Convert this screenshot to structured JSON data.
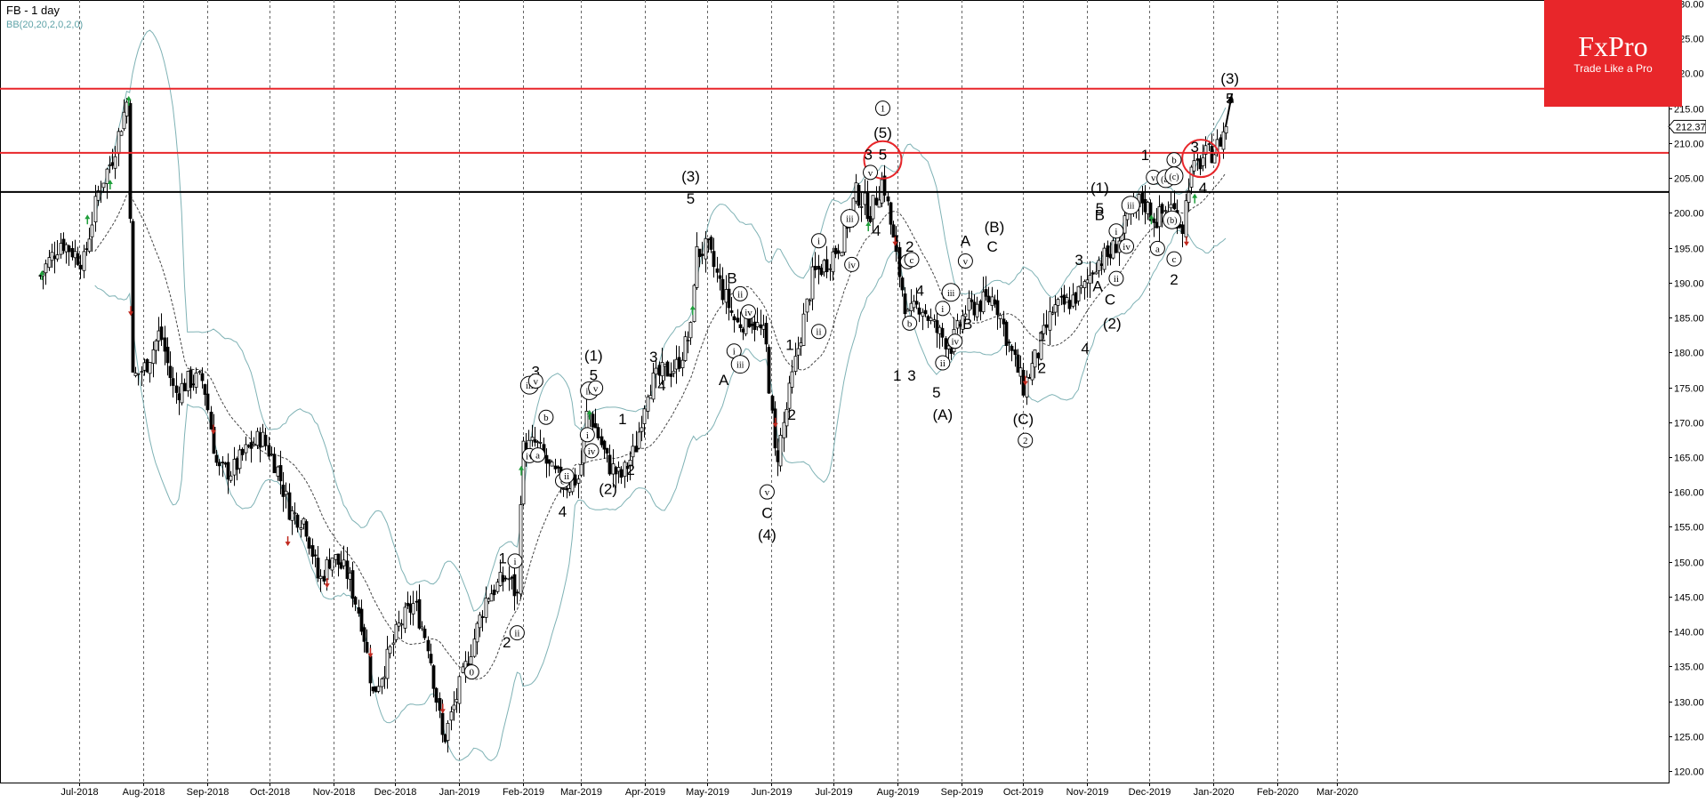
{
  "header": {
    "symbol_title": "FB  - 1 day",
    "indicator_label": "BB(20,20,2,0,2,0)"
  },
  "logo": {
    "name": "FxPro",
    "slogan": "Trade Like a Pro"
  },
  "colors": {
    "background": "#ffffff",
    "candle": "#000000",
    "bollinger_bands": "#7fb2b5",
    "resistance_line": "#e8262a",
    "support_line": "#000000",
    "up_arrow": "#1e9e3a",
    "down_arrow": "#c0281e",
    "logo": "#e8262a"
  },
  "chart_data": {
    "type": "candlestick",
    "symbol": "FB",
    "timeframe": "1 day",
    "indicator": "Bollinger Bands",
    "ylim": [
      118,
      231
    ],
    "y_ticks": [
      120,
      125,
      130,
      135,
      140,
      145,
      150,
      155,
      160,
      165,
      170,
      175,
      180,
      185,
      190,
      195,
      200,
      205,
      210,
      215,
      220,
      225,
      230
    ],
    "y_tick_labels": [
      "120.00",
      "125.00",
      "130.00",
      "135.00",
      "140.00",
      "145.00",
      "150.00",
      "155.00",
      "160.00",
      "165.00",
      "170.00",
      "175.00",
      "180.00",
      "185.00",
      "190.00",
      "195.00",
      "200.00",
      "205.00",
      "210.00",
      "215.00",
      "220.00",
      "225.00",
      "230.00"
    ],
    "x_axis_labels": [
      "Jul-2018",
      "Aug-2018",
      "Sep-2018",
      "Oct-2018",
      "Nov-2018",
      "Dec-2018",
      "Jan-2019",
      "Feb-2019",
      "Mar-2019",
      "Apr-2019",
      "May-2019",
      "Jun-2019",
      "Jul-2019",
      "Aug-2019",
      "Sep-2019",
      "Oct-2019",
      "Nov-2019",
      "Dec-2019",
      "Jan-2020",
      "Feb-2020",
      "Mar-2020"
    ],
    "last_price": 212.37,
    "last_price_label": "212.37",
    "horizontal_lines": [
      {
        "kind": "resistance",
        "value": 217.8,
        "color": "#e8262a"
      },
      {
        "kind": "resistance",
        "value": 208.6,
        "color": "#e8262a"
      },
      {
        "kind": "support",
        "value": 203.0,
        "color": "#000000"
      }
    ],
    "highlight_circles": [
      {
        "date": "2019-07-25",
        "price": 207.6
      },
      {
        "date": "2019-12-26",
        "price": 207.8
      }
    ],
    "price_anchors": [
      [
        "2018-06-12",
        191
      ],
      [
        "2018-06-22",
        196
      ],
      [
        "2018-07-03",
        193
      ],
      [
        "2018-07-10",
        203
      ],
      [
        "2018-07-17",
        208
      ],
      [
        "2018-07-25",
        217
      ],
      [
        "2018-07-26",
        176
      ],
      [
        "2018-08-02",
        178
      ],
      [
        "2018-08-09",
        183
      ],
      [
        "2018-08-16",
        174
      ],
      [
        "2018-08-23",
        176
      ],
      [
        "2018-08-30",
        176
      ],
      [
        "2018-09-06",
        163
      ],
      [
        "2018-09-13",
        163
      ],
      [
        "2018-09-20",
        166
      ],
      [
        "2018-09-27",
        168
      ],
      [
        "2018-10-04",
        164
      ],
      [
        "2018-10-11",
        157
      ],
      [
        "2018-10-18",
        156
      ],
      [
        "2018-10-25",
        147
      ],
      [
        "2018-10-31",
        151
      ],
      [
        "2018-11-08",
        148
      ],
      [
        "2018-11-15",
        141
      ],
      [
        "2018-11-20",
        131
      ],
      [
        "2018-11-27",
        136
      ],
      [
        "2018-12-03",
        141
      ],
      [
        "2018-12-10",
        144
      ],
      [
        "2018-12-17",
        138
      ],
      [
        "2018-12-24",
        124
      ],
      [
        "2018-12-31",
        131
      ],
      [
        "2019-01-07",
        138
      ],
      [
        "2019-01-14",
        145
      ],
      [
        "2019-01-24",
        148
      ],
      [
        "2019-01-29",
        145
      ],
      [
        "2019-01-31",
        166
      ],
      [
        "2019-02-07",
        167
      ],
      [
        "2019-02-14",
        163
      ],
      [
        "2019-02-21",
        161
      ],
      [
        "2019-02-28",
        162
      ],
      [
        "2019-03-04",
        172
      ],
      [
        "2019-03-08",
        169
      ],
      [
        "2019-03-14",
        164
      ],
      [
        "2019-03-20",
        162
      ],
      [
        "2019-03-27",
        166
      ],
      [
        "2019-04-02",
        175
      ],
      [
        "2019-04-09",
        177
      ],
      [
        "2019-04-16",
        178
      ],
      [
        "2019-04-23",
        183
      ],
      [
        "2019-04-25",
        194
      ],
      [
        "2019-05-01",
        195
      ],
      [
        "2019-05-08",
        189
      ],
      [
        "2019-05-15",
        184
      ],
      [
        "2019-05-22",
        185
      ],
      [
        "2019-05-29",
        182
      ],
      [
        "2019-06-03",
        164
      ],
      [
        "2019-06-07",
        170
      ],
      [
        "2019-06-14",
        181
      ],
      [
        "2019-06-21",
        191
      ],
      [
        "2019-06-28",
        193
      ],
      [
        "2019-07-05",
        196
      ],
      [
        "2019-07-12",
        203
      ],
      [
        "2019-07-19",
        200
      ],
      [
        "2019-07-25",
        205
      ],
      [
        "2019-07-31",
        194
      ],
      [
        "2019-08-06",
        185
      ],
      [
        "2019-08-12",
        187
      ],
      [
        "2019-08-20",
        183
      ],
      [
        "2019-08-27",
        181
      ],
      [
        "2019-09-03",
        186
      ],
      [
        "2019-09-10",
        187
      ],
      [
        "2019-09-17",
        188
      ],
      [
        "2019-09-24",
        181
      ],
      [
        "2019-10-01",
        175
      ],
      [
        "2019-10-08",
        180
      ],
      [
        "2019-10-15",
        186
      ],
      [
        "2019-10-22",
        187
      ],
      [
        "2019-10-30",
        189
      ],
      [
        "2019-11-05",
        193
      ],
      [
        "2019-11-12",
        194
      ],
      [
        "2019-11-19",
        198
      ],
      [
        "2019-11-27",
        202
      ],
      [
        "2019-12-04",
        199
      ],
      [
        "2019-12-11",
        201
      ],
      [
        "2019-12-17",
        198
      ],
      [
        "2019-12-20",
        205
      ],
      [
        "2019-12-27",
        208
      ],
      [
        "2020-01-02",
        209
      ],
      [
        "2020-01-07",
        212.4
      ]
    ],
    "signal_arrows": [
      {
        "dir": "up",
        "date": "2018-06-13",
        "price": 191
      },
      {
        "dir": "up",
        "date": "2018-07-05",
        "price": 199
      },
      {
        "dir": "up",
        "date": "2018-07-16",
        "price": 204
      },
      {
        "dir": "up",
        "date": "2018-07-25",
        "price": 216
      },
      {
        "dir": "down",
        "date": "2018-07-26",
        "price": 186
      },
      {
        "dir": "down",
        "date": "2018-09-04",
        "price": 169
      },
      {
        "dir": "down",
        "date": "2018-10-10",
        "price": 153
      },
      {
        "dir": "down",
        "date": "2018-10-29",
        "price": 147
      },
      {
        "dir": "down",
        "date": "2018-11-19",
        "price": 137
      },
      {
        "dir": "down",
        "date": "2018-12-24",
        "price": 129
      },
      {
        "dir": "up",
        "date": "2019-01-31",
        "price": 163
      },
      {
        "dir": "up",
        "date": "2019-03-05",
        "price": 171
      },
      {
        "dir": "up",
        "date": "2019-04-24",
        "price": 186
      },
      {
        "dir": "down",
        "date": "2019-06-03",
        "price": 170
      },
      {
        "dir": "up",
        "date": "2019-07-18",
        "price": 198
      },
      {
        "dir": "down",
        "date": "2019-07-31",
        "price": 196
      },
      {
        "dir": "down",
        "date": "2019-10-02",
        "price": 176
      },
      {
        "dir": "up",
        "date": "2019-12-02",
        "price": 199
      },
      {
        "dir": "down",
        "date": "2019-12-19",
        "price": 196
      },
      {
        "dir": "up",
        "date": "2019-12-23",
        "price": 202
      }
    ],
    "wave_labels": [
      {
        "text": "0",
        "date": "2019-01-07",
        "price": 134.2,
        "circled": true
      },
      {
        "text": "1",
        "date": "2019-01-22",
        "price": 150.5
      },
      {
        "text": "2",
        "date": "2019-01-24",
        "price": 138.5
      },
      {
        "text": "i",
        "date": "2019-01-28",
        "price": 150.1,
        "circled": true
      },
      {
        "text": "ii",
        "date": "2019-01-29",
        "price": 139.8,
        "circled": true
      },
      {
        "text": "iii",
        "date": "2019-02-04",
        "price": 175.3,
        "circled": true
      },
      {
        "text": "3",
        "date": "2019-02-07",
        "price": 177.3
      },
      {
        "text": "v",
        "date": "2019-02-07",
        "price": 175.9,
        "circled": true
      },
      {
        "text": "iv",
        "date": "2019-02-04",
        "price": 165.2,
        "circled": true
      },
      {
        "text": "a",
        "date": "2019-02-08",
        "price": 165.3,
        "circled": true
      },
      {
        "text": "b",
        "date": "2019-02-12",
        "price": 170.7,
        "circled": true
      },
      {
        "text": "c",
        "date": "2019-02-20",
        "price": 161.6,
        "circled": true
      },
      {
        "text": "ii",
        "date": "2019-02-22",
        "price": 162.3,
        "circled": true
      },
      {
        "text": "4",
        "date": "2019-02-20",
        "price": 157.2
      },
      {
        "text": "(1)",
        "date": "2019-03-07",
        "price": 179.6
      },
      {
        "text": "5",
        "date": "2019-03-07",
        "price": 176.8
      },
      {
        "text": "iii",
        "date": "2019-03-05",
        "price": 174.5,
        "circled": true
      },
      {
        "text": "v",
        "date": "2019-03-08",
        "price": 174.9,
        "circled": true
      },
      {
        "text": "i",
        "date": "2019-03-04",
        "price": 168.2,
        "circled": true
      },
      {
        "text": "iv",
        "date": "2019-03-06",
        "price": 165.9,
        "circled": true
      },
      {
        "text": "1",
        "date": "2019-03-21",
        "price": 170.5
      },
      {
        "text": "(2)",
        "date": "2019-03-14",
        "price": 160.5
      },
      {
        "text": "2",
        "date": "2019-03-25",
        "price": 163.2
      },
      {
        "text": "3",
        "date": "2019-04-05",
        "price": 179.4
      },
      {
        "text": "4",
        "date": "2019-04-09",
        "price": 175.3
      },
      {
        "text": "(3)",
        "date": "2019-04-23",
        "price": 205.3
      },
      {
        "text": "5",
        "date": "2019-04-23",
        "price": 202.1
      },
      {
        "text": "B",
        "date": "2019-05-13",
        "price": 190.7
      },
      {
        "text": "ii",
        "date": "2019-05-17",
        "price": 188.4,
        "circled": true
      },
      {
        "text": "iv",
        "date": "2019-05-21",
        "price": 185.8,
        "circled": true
      },
      {
        "text": "i",
        "date": "2019-05-14",
        "price": 180.2,
        "circled": true
      },
      {
        "text": "iii",
        "date": "2019-05-17",
        "price": 178.3,
        "circled": true
      },
      {
        "text": "A",
        "date": "2019-05-09",
        "price": 176.1
      },
      {
        "text": "v",
        "date": "2019-05-30",
        "price": 160.0,
        "circled": true
      },
      {
        "text": "C",
        "date": "2019-05-30",
        "price": 157.0
      },
      {
        "text": "(4)",
        "date": "2019-05-30",
        "price": 153.9
      },
      {
        "text": "1",
        "date": "2019-06-10",
        "price": 181.1
      },
      {
        "text": "2",
        "date": "2019-06-11",
        "price": 171.1
      },
      {
        "text": "i",
        "date": "2019-06-24",
        "price": 196.0,
        "circled": true
      },
      {
        "text": "ii",
        "date": "2019-06-24",
        "price": 183.0,
        "circled": true
      },
      {
        "text": "iii",
        "date": "2019-07-09",
        "price": 199.2,
        "circled": true
      },
      {
        "text": "iv",
        "date": "2019-07-10",
        "price": 192.6,
        "circled": true
      },
      {
        "text": "3",
        "date": "2019-07-18",
        "price": 208.4
      },
      {
        "text": "v",
        "date": "2019-07-19",
        "price": 205.8,
        "circled": true
      },
      {
        "text": "4",
        "date": "2019-07-22",
        "price": 197.5
      },
      {
        "text": "1",
        "date": "2019-07-25",
        "price": 215.0,
        "circled": true
      },
      {
        "text": "(5)",
        "date": "2019-07-25",
        "price": 211.5
      },
      {
        "text": "5",
        "date": "2019-07-25",
        "price": 208.4
      },
      {
        "text": "2",
        "date": "2019-08-07",
        "price": 195.2
      },
      {
        "text": "a",
        "date": "2019-08-06",
        "price": 193.0,
        "circled": true
      },
      {
        "text": "c",
        "date": "2019-08-08",
        "price": 193.3,
        "circled": true
      },
      {
        "text": "4",
        "date": "2019-08-12",
        "price": 188.9
      },
      {
        "text": "b",
        "date": "2019-08-07",
        "price": 184.2,
        "circled": true
      },
      {
        "text": "1",
        "date": "2019-08-01",
        "price": 176.7
      },
      {
        "text": "3",
        "date": "2019-08-08",
        "price": 176.7
      },
      {
        "text": "5",
        "date": "2019-08-20",
        "price": 174.3
      },
      {
        "text": "i",
        "date": "2019-08-23",
        "price": 186.3,
        "circled": true
      },
      {
        "text": "iii",
        "date": "2019-08-27",
        "price": 188.6,
        "circled": true
      },
      {
        "text": "iv",
        "date": "2019-08-29",
        "price": 181.6,
        "circled": true
      },
      {
        "text": "ii",
        "date": "2019-08-23",
        "price": 178.5,
        "circled": true
      },
      {
        "text": "A",
        "date": "2019-09-03",
        "price": 196.0
      },
      {
        "text": "v",
        "date": "2019-09-03",
        "price": 193.1,
        "circled": true
      },
      {
        "text": "B",
        "date": "2019-09-04",
        "price": 184.1
      },
      {
        "text": "(A)",
        "date": "2019-08-23",
        "price": 171.1
      },
      {
        "text": "(B)",
        "date": "2019-09-17",
        "price": 198.0
      },
      {
        "text": "C",
        "date": "2019-09-16",
        "price": 195.2
      },
      {
        "text": "1",
        "date": "2019-10-10",
        "price": 182.4
      },
      {
        "text": "2",
        "date": "2019-10-10",
        "price": 177.8
      },
      {
        "text": "(C)",
        "date": "2019-10-01",
        "price": 170.5
      },
      {
        "text": "2",
        "date": "2019-10-02",
        "price": 167.4,
        "circled": true
      },
      {
        "text": "3",
        "date": "2019-10-28",
        "price": 193.3
      },
      {
        "text": "4",
        "date": "2019-10-31",
        "price": 180.6
      },
      {
        "text": "(1)",
        "date": "2019-11-07",
        "price": 203.6
      },
      {
        "text": "5",
        "date": "2019-11-07",
        "price": 200.7
      },
      {
        "text": "B",
        "date": "2019-11-07",
        "price": 199.7
      },
      {
        "text": "A",
        "date": "2019-11-06",
        "price": 189.5
      },
      {
        "text": "C",
        "date": "2019-11-12",
        "price": 187.6
      },
      {
        "text": "(2)",
        "date": "2019-11-13",
        "price": 184.2
      },
      {
        "text": "i",
        "date": "2019-11-15",
        "price": 197.4,
        "circled": true
      },
      {
        "text": "ii",
        "date": "2019-11-15",
        "price": 190.6,
        "circled": true
      },
      {
        "text": "iii",
        "date": "2019-11-22",
        "price": 201.1,
        "circled": true
      },
      {
        "text": "iv",
        "date": "2019-11-20",
        "price": 195.2,
        "circled": true
      },
      {
        "text": "v",
        "date": "2019-12-03",
        "price": 205.1,
        "circled": true
      },
      {
        "text": "a",
        "date": "2019-12-05",
        "price": 194.9,
        "circled": true
      },
      {
        "text": "(a)",
        "date": "2019-12-09",
        "price": 204.9,
        "circled": true
      },
      {
        "text": "b",
        "date": "2019-12-13",
        "price": 207.6,
        "circled": true
      },
      {
        "text": "(c)",
        "date": "2019-12-13",
        "price": 205.3,
        "circled": true
      },
      {
        "text": "(b)",
        "date": "2019-12-12",
        "price": 199.0,
        "circled": true
      },
      {
        "text": "c",
        "date": "2019-12-13",
        "price": 193.4,
        "circled": true
      },
      {
        "text": "2",
        "date": "2019-12-13",
        "price": 190.5
      },
      {
        "text": "1",
        "date": "2019-11-29",
        "price": 208.3
      },
      {
        "text": "3",
        "date": "2019-12-23",
        "price": 209.5
      },
      {
        "text": "4",
        "date": "2019-12-27",
        "price": 203.6
      },
      {
        "text": "(3)",
        "date": "2020-01-09",
        "price": 219.3
      },
      {
        "text": "5",
        "date": "2020-01-09",
        "price": 216.4
      }
    ],
    "projection_arrow": {
      "from_date": "2020-01-07",
      "from_price": 212.4,
      "to_date": "2020-01-10",
      "to_price": 217.0
    }
  }
}
